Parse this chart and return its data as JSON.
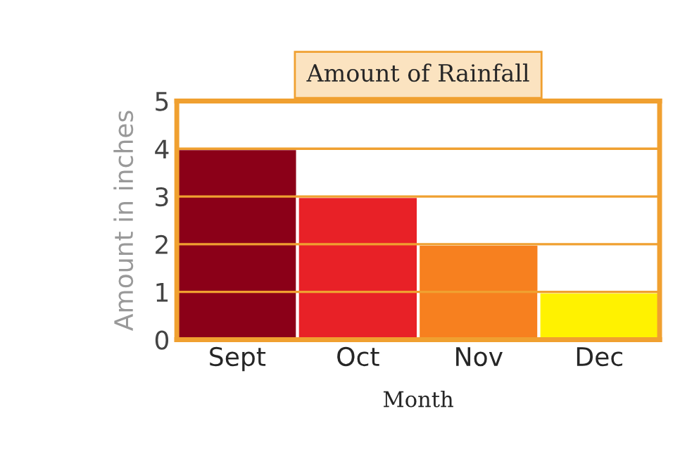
{
  "chart_data": {
    "type": "bar",
    "title": "Amount of Rainfall",
    "xlabel": "Month",
    "ylabel": "Amount in inches",
    "categories": [
      "Sept",
      "Oct",
      "Nov",
      "Dec"
    ],
    "values": [
      4,
      3,
      2,
      1
    ],
    "colors": [
      "#8b0018",
      "#e82127",
      "#f7801f",
      "#fff200"
    ],
    "ylim": [
      0,
      5
    ],
    "yticks": [
      0,
      1,
      2,
      3,
      4,
      5
    ],
    "grid": "y"
  }
}
